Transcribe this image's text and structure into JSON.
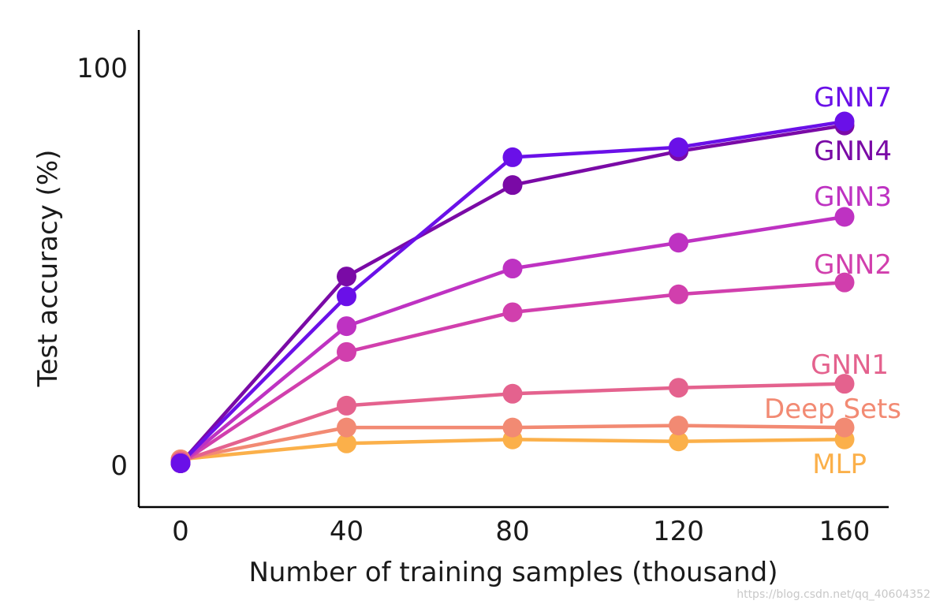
{
  "chart_data": {
    "type": "line",
    "title": "",
    "xlabel": "Number of training samples (thousand)",
    "ylabel": "Test accuracy (%)",
    "x": [
      0,
      40,
      80,
      120,
      160
    ],
    "x_tick_labels": [
      "0",
      "40",
      "80",
      "120",
      "160"
    ],
    "y_ticks": [
      0,
      100
    ],
    "y_tick_labels": [
      "0",
      "100"
    ],
    "xlim": [
      -10,
      170
    ],
    "ylim": [
      -10,
      110
    ],
    "grid": false,
    "legend": "inline labels at right end of lines",
    "series": [
      {
        "name": "MLP",
        "label": "MLP",
        "color": "#fbb04a",
        "values": [
          1.5,
          5.5,
          6.5,
          6,
          6.5
        ]
      },
      {
        "name": "Deep Sets",
        "label": "Deep Sets",
        "color": "#f28a73",
        "values": [
          1.5,
          9.5,
          9.5,
          10,
          9.5
        ]
      },
      {
        "name": "GNN1",
        "label": "GNN1",
        "color": "#e4628e",
        "values": [
          1,
          15,
          18,
          19.5,
          20.5
        ]
      },
      {
        "name": "GNN2",
        "label": "GNN2",
        "color": "#d13fad",
        "values": [
          0.5,
          28.5,
          38.5,
          43,
          46
        ]
      },
      {
        "name": "GNN3",
        "label": "GNN3",
        "color": "#be32c2",
        "values": [
          0.5,
          35,
          49.5,
          56,
          62.5
        ]
      },
      {
        "name": "GNN4",
        "label": "GNN4",
        "color": "#7a0aa6",
        "values": [
          0.5,
          47.5,
          70.5,
          79,
          85.5
        ]
      },
      {
        "name": "GNN7",
        "label": "GNN7",
        "color": "#6a10e8",
        "values": [
          0.5,
          42.5,
          77.5,
          80,
          86.5
        ]
      }
    ]
  },
  "watermark": "https://blog.csdn.net/qq_40604352"
}
